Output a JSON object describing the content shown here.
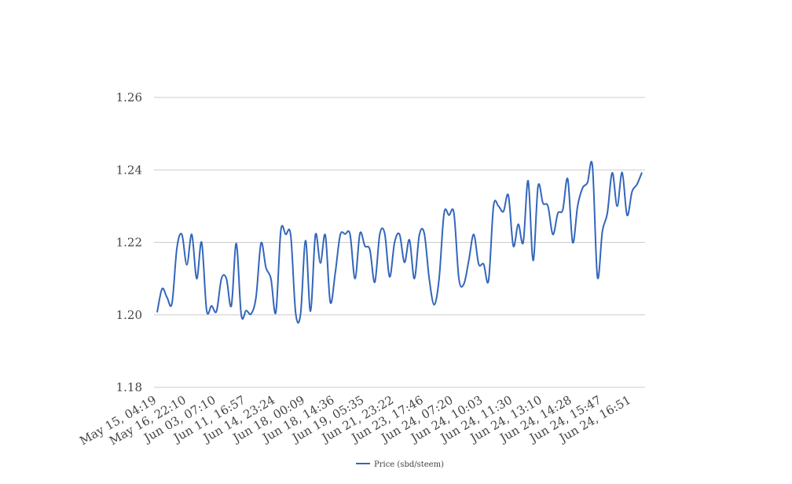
{
  "chart_data": {
    "type": "line",
    "title": "",
    "xlabel": "",
    "ylabel": "",
    "ylim": [
      1.18,
      1.26
    ],
    "yticks": [
      "1.18",
      "1.20",
      "1.22",
      "1.24",
      "1.26"
    ],
    "yticks_values": [
      1.18,
      1.2,
      1.22,
      1.24,
      1.26
    ],
    "grid": true,
    "legend_position": "bottom",
    "x_tick_labels": [
      "May 15, 04:19",
      "May 16, 22:10",
      "Jun 03, 07:10",
      "Jun 11, 16:57",
      "Jun 14, 23:24",
      "Jun 18, 00:09",
      "Jun 18, 14:36",
      "Jun 19, 05:35",
      "Jun 21, 23:22",
      "Jun 23, 17:46",
      "Jun 24, 07:20",
      "Jun 24, 10:03",
      "Jun 24, 11:30",
      "Jun 24, 13:10",
      "Jun 24, 14:28",
      "Jun 24, 15:47",
      "Jun 24, 16:51"
    ],
    "series": [
      {
        "name": "Price (sbd/steem)",
        "color": "#3366bb",
        "values": [
          1.2007,
          1.2072,
          1.2048,
          1.2032,
          1.2185,
          1.2222,
          1.2138,
          1.2222,
          1.21,
          1.22,
          1.2013,
          1.2025,
          1.201,
          1.21,
          1.21,
          1.2025,
          1.2197,
          1.2,
          1.2012,
          1.2003,
          1.205,
          1.2198,
          1.213,
          1.21,
          1.2007,
          1.2232,
          1.2222,
          1.222,
          1.2005,
          1.2003,
          1.2205,
          1.201,
          1.2221,
          1.2143,
          1.222,
          1.2035,
          1.2115,
          1.222,
          1.2223,
          1.2222,
          1.21,
          1.2225,
          1.219,
          1.218,
          1.209,
          1.2222,
          1.2225,
          1.2105,
          1.22,
          1.2222,
          1.2145,
          1.2207,
          1.21,
          1.222,
          1.2225,
          1.21,
          1.2028,
          1.21,
          1.228,
          1.2275,
          1.228,
          1.21,
          1.2085,
          1.215,
          1.2222,
          1.214,
          1.214,
          1.2095,
          1.23,
          1.23,
          1.2285,
          1.233,
          1.219,
          1.225,
          1.22,
          1.237,
          1.215,
          1.2355,
          1.2308,
          1.23,
          1.2222,
          1.228,
          1.229,
          1.2375,
          1.22,
          1.23,
          1.235,
          1.2365,
          1.241,
          1.2105,
          1.223,
          1.228,
          1.2392,
          1.23,
          1.2393,
          1.2275,
          1.234,
          1.236,
          1.2393
        ]
      }
    ]
  }
}
